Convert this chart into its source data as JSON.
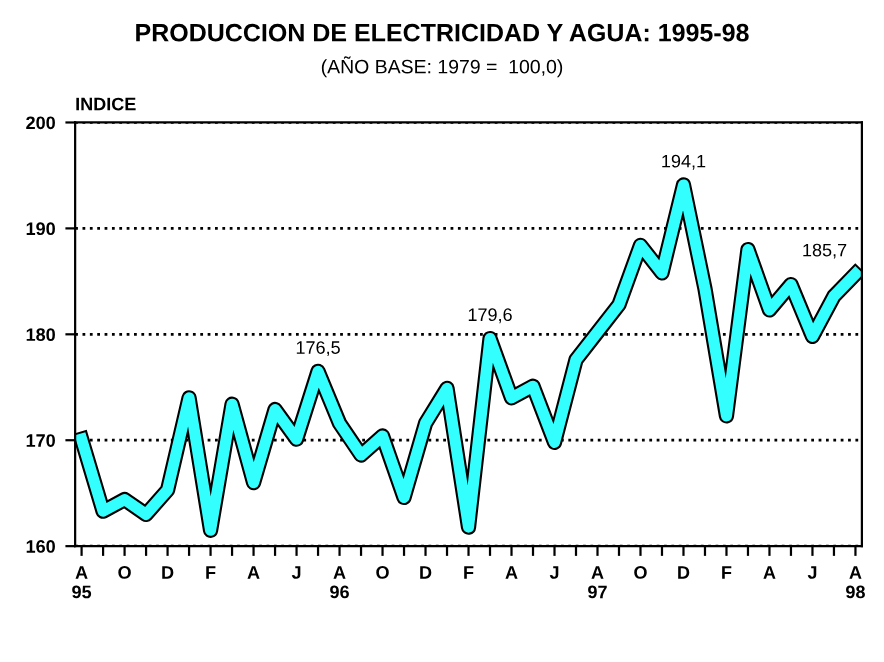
{
  "chart_data": {
    "type": "line",
    "title": "PRODUCCION DE ELECTRICIDAD Y AGUA: 1995-98",
    "subtitle": "(AÑO BASE: 1979 =  100,0)",
    "ylabel": "INDICE",
    "categories": [
      "A\n95",
      null,
      "O",
      null,
      "D",
      null,
      "F",
      null,
      "A",
      null,
      "J",
      null,
      "A\n96",
      null,
      "O",
      null,
      "D",
      null,
      "F",
      null,
      "A",
      null,
      "J",
      null,
      "A\n97",
      null,
      "O",
      null,
      "D",
      null,
      "F",
      null,
      "A",
      null,
      "J",
      null,
      "A\n98"
    ],
    "series": [
      {
        "color": "#33ffff",
        "values": [
          170.1,
          163.3,
          164.4,
          163.0,
          165.3,
          174.0,
          161.5,
          173.4,
          166.0,
          172.9,
          170.1,
          176.5,
          171.6,
          168.6,
          170.4,
          164.6,
          171.6,
          174.9,
          161.8,
          179.6,
          174.0,
          175.1,
          169.8,
          177.6,
          180.2,
          182.8,
          188.4,
          185.8,
          194.1,
          184.3,
          172.3,
          188.0,
          182.3,
          184.7,
          179.8,
          183.6,
          185.7
        ],
        "value_labels": [
          null,
          null,
          null,
          null,
          null,
          null,
          null,
          null,
          null,
          null,
          null,
          "176,5",
          null,
          null,
          null,
          null,
          null,
          null,
          null,
          "179,6",
          null,
          null,
          null,
          null,
          null,
          null,
          null,
          null,
          "194,1",
          null,
          null,
          null,
          null,
          null,
          null,
          null,
          "185,7"
        ]
      }
    ],
    "ylim": [
      160,
      200
    ],
    "yticks": [
      160,
      170,
      180,
      190,
      200
    ],
    "grid": "y",
    "legend": false,
    "marker": "none",
    "line_style": "solid"
  }
}
